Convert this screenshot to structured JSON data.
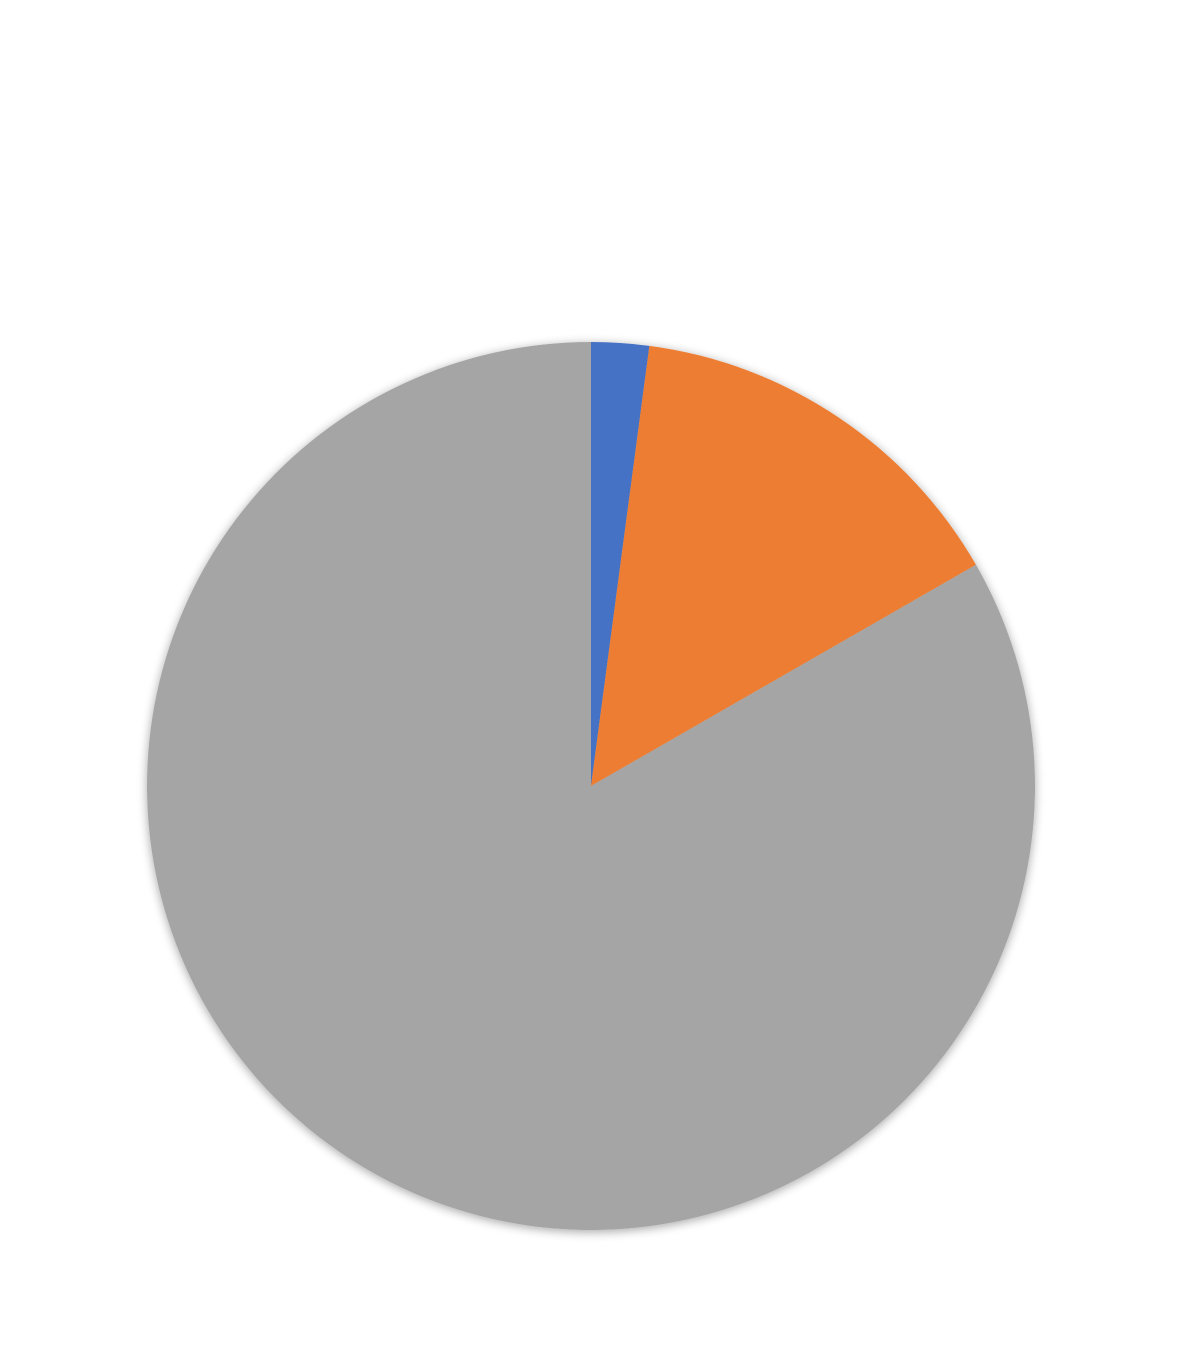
{
  "chart_data": {
    "type": "pie",
    "start_angle_deg": 0,
    "direction": "clockwise",
    "slices": [
      {
        "value": 2.1,
        "color": "#4472C4"
      },
      {
        "value": 14.6,
        "color": "#ED7D31"
      },
      {
        "value": 83.3,
        "color": "#A5A5A5"
      }
    ],
    "legend": "none",
    "data_labels": "none"
  }
}
